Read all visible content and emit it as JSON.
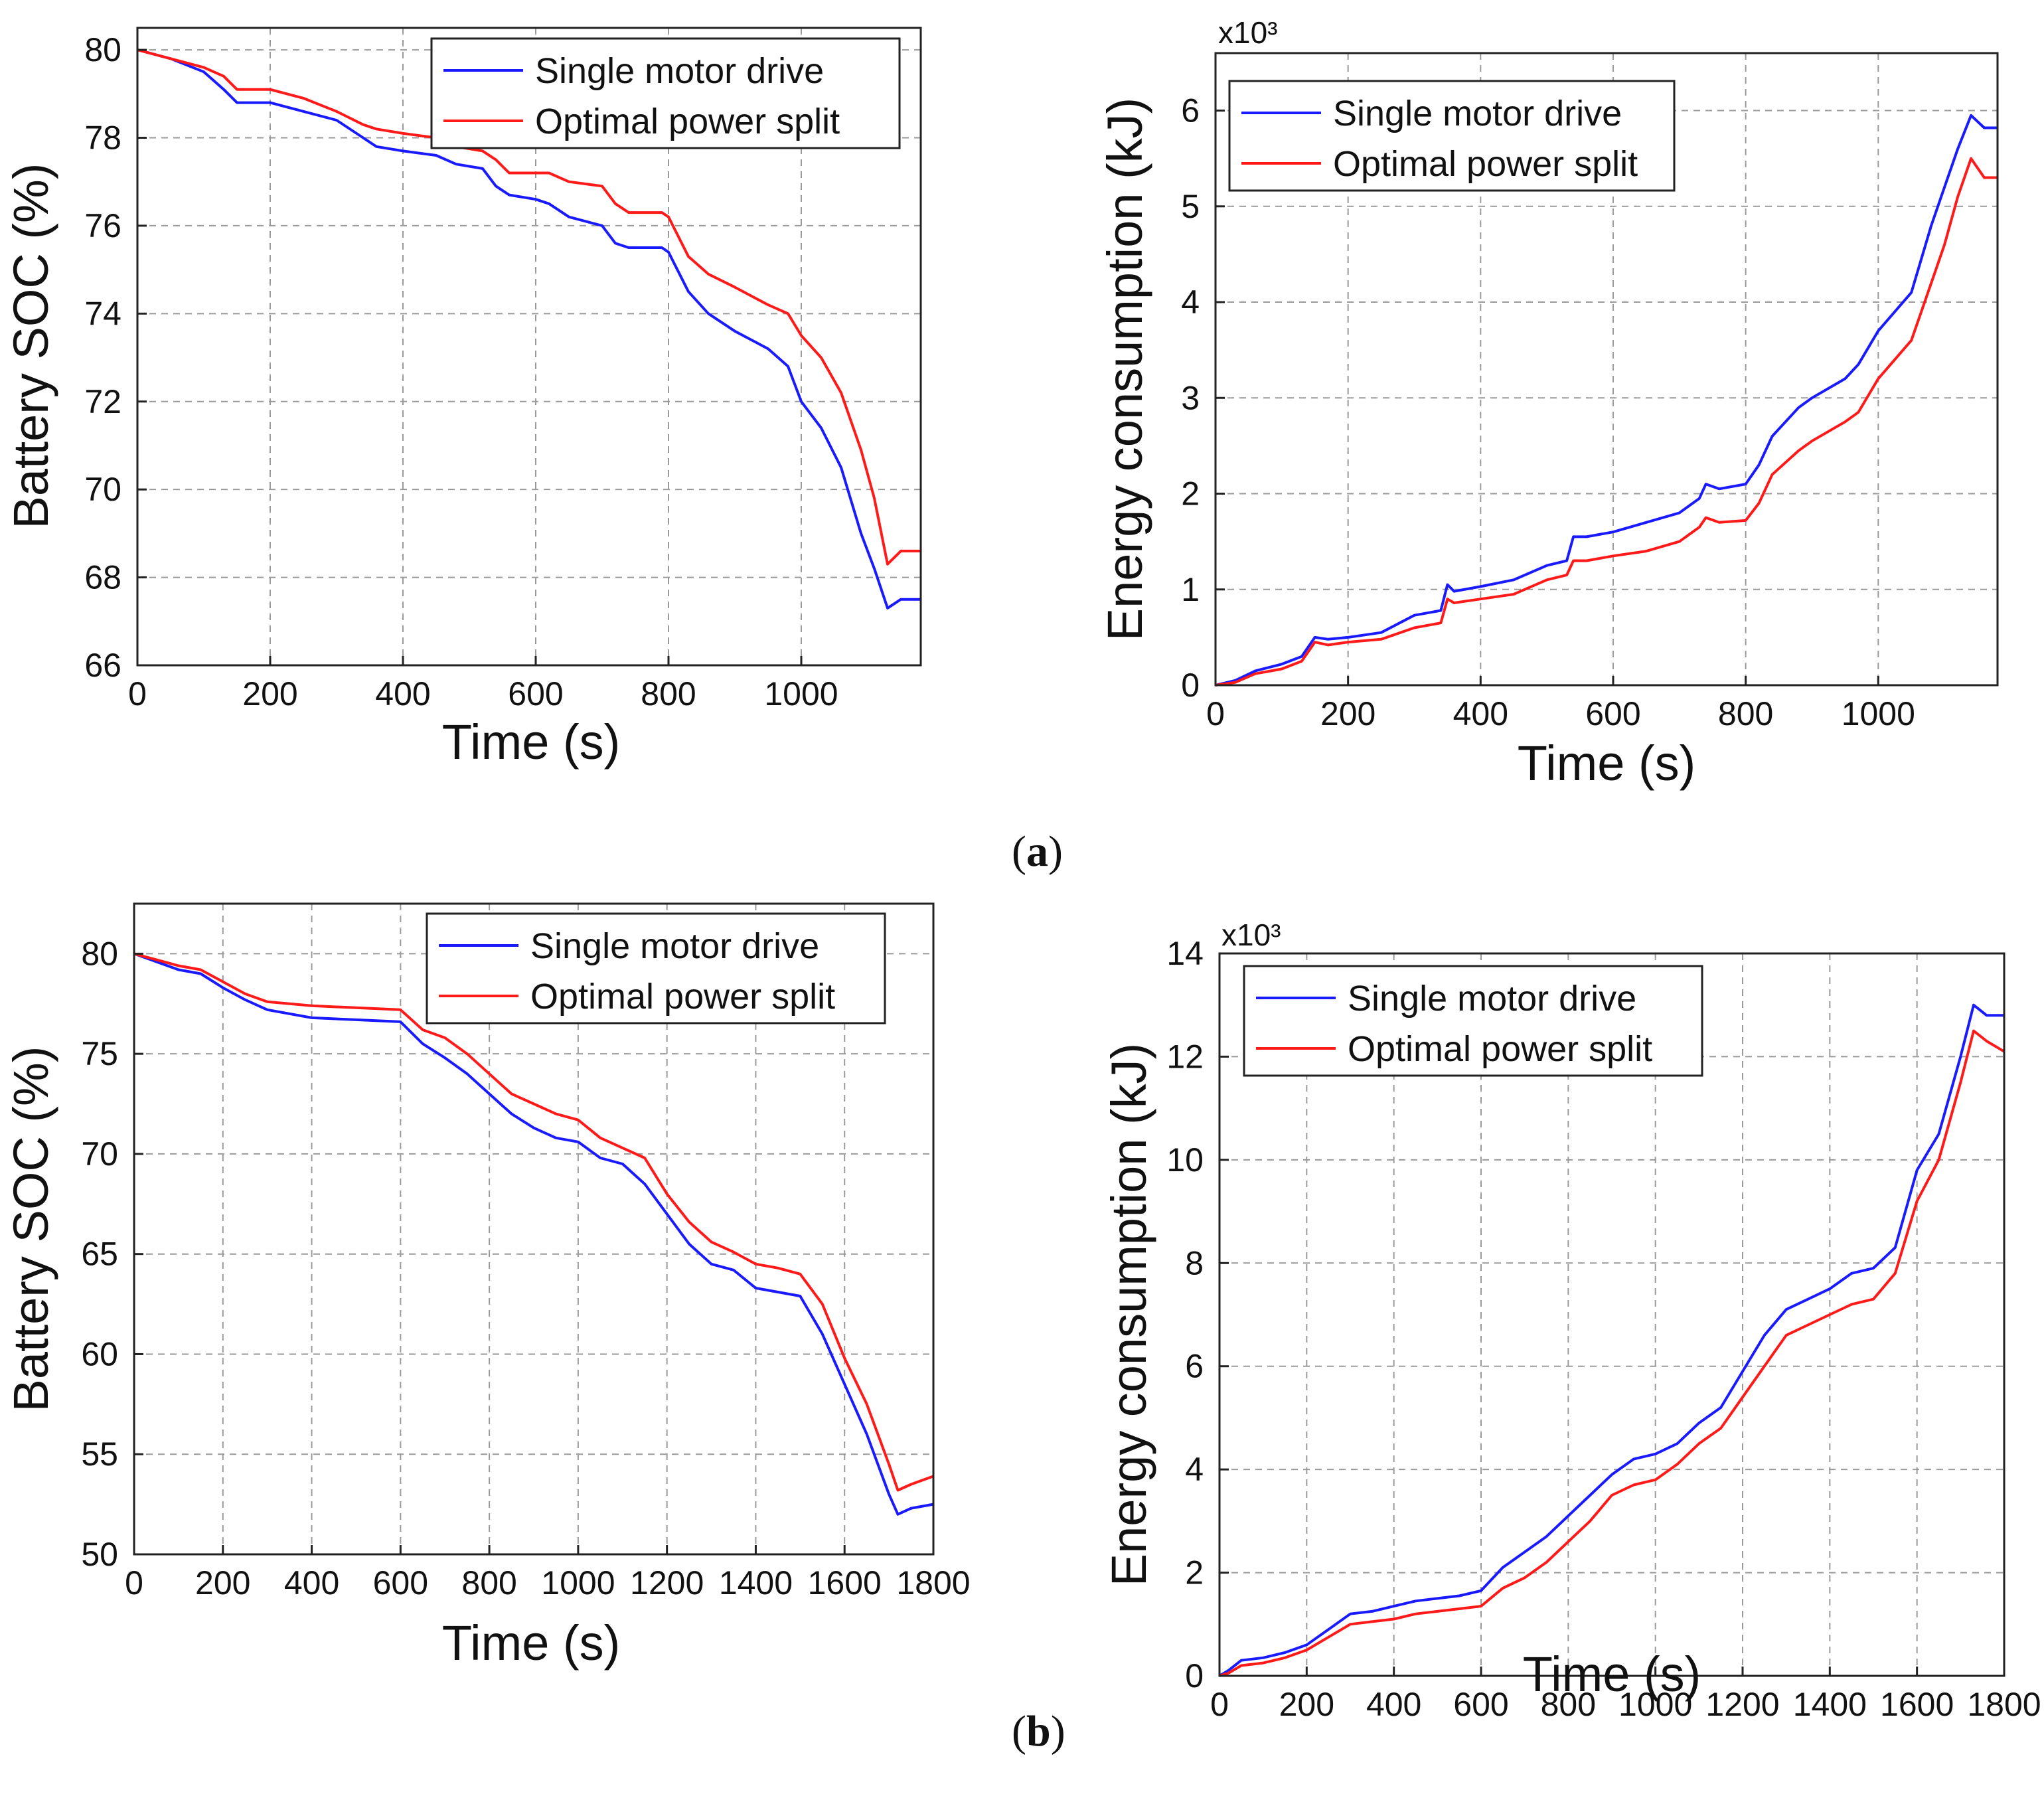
{
  "captions": {
    "a_open": "(",
    "a_letter": "a",
    "a_close": ")",
    "b_open": "(",
    "b_letter": "b",
    "b_close": ")"
  },
  "colors": {
    "single": "#1a1aff",
    "optimal": "#ff1a1a",
    "grid": "#9a9a9a"
  },
  "chart_data": [
    {
      "id": "a-soc",
      "type": "line",
      "xlabel": "Time (s)",
      "ylabel": "Battery SOC (%)",
      "multiplier": "",
      "xlim": [
        0,
        1180
      ],
      "ylim": [
        66,
        80.5
      ],
      "xticks": [
        0,
        200,
        400,
        600,
        800,
        1000
      ],
      "xtick_labels": [
        "0",
        "200",
        "400",
        "600",
        "800",
        "1000"
      ],
      "yticks": [
        66,
        68,
        70,
        72,
        74,
        76,
        78,
        80
      ],
      "ytick_labels": [
        "66",
        "68",
        "70",
        "72",
        "74",
        "76",
        "78",
        "80"
      ],
      "legend": {
        "position": "top-right",
        "entries": [
          "Single motor drive",
          "Optimal power split"
        ]
      },
      "series": [
        {
          "name": "Single motor drive",
          "color": "#1a1aff",
          "x": [
            0,
            50,
            100,
            130,
            150,
            200,
            250,
            300,
            340,
            360,
            400,
            450,
            480,
            520,
            540,
            560,
            600,
            620,
            650,
            700,
            720,
            740,
            760,
            790,
            800,
            830,
            860,
            900,
            950,
            980,
            1000,
            1030,
            1060,
            1090,
            1110,
            1130,
            1150,
            1160,
            1180
          ],
          "y": [
            80,
            79.8,
            79.5,
            79.1,
            78.8,
            78.8,
            78.6,
            78.4,
            78.0,
            77.8,
            77.7,
            77.6,
            77.4,
            77.3,
            76.9,
            76.7,
            76.6,
            76.5,
            76.2,
            76.0,
            75.6,
            75.5,
            75.5,
            75.5,
            75.4,
            74.5,
            74.0,
            73.6,
            73.2,
            72.8,
            72.0,
            71.4,
            70.5,
            69.0,
            68.2,
            67.3,
            67.5,
            67.5,
            67.5
          ]
        },
        {
          "name": "Optimal power split",
          "color": "#ff1a1a",
          "x": [
            0,
            50,
            100,
            130,
            150,
            200,
            250,
            300,
            340,
            360,
            400,
            450,
            480,
            520,
            540,
            560,
            600,
            620,
            650,
            700,
            720,
            740,
            760,
            790,
            800,
            830,
            860,
            900,
            950,
            980,
            1000,
            1030,
            1060,
            1090,
            1110,
            1130,
            1150,
            1160,
            1180
          ],
          "y": [
            80,
            79.8,
            79.6,
            79.4,
            79.1,
            79.1,
            78.9,
            78.6,
            78.3,
            78.2,
            78.1,
            78.0,
            77.8,
            77.7,
            77.5,
            77.2,
            77.2,
            77.2,
            77.0,
            76.9,
            76.5,
            76.3,
            76.3,
            76.3,
            76.2,
            75.3,
            74.9,
            74.6,
            74.2,
            74.0,
            73.5,
            73.0,
            72.2,
            70.9,
            69.8,
            68.3,
            68.6,
            68.6,
            68.6
          ]
        }
      ]
    },
    {
      "id": "a-energy",
      "type": "line",
      "xlabel": "Time (s)",
      "ylabel": "Energy consumption (kJ)",
      "multiplier": "x10³",
      "xlim": [
        0,
        1180
      ],
      "ylim": [
        0,
        6.6
      ],
      "xticks": [
        0,
        200,
        400,
        600,
        800,
        1000
      ],
      "xtick_labels": [
        "0",
        "200",
        "400",
        "600",
        "800",
        "1000"
      ],
      "yticks": [
        0,
        1,
        2,
        3,
        4,
        5,
        6
      ],
      "ytick_labels": [
        "0",
        "1",
        "2",
        "3",
        "4",
        "5",
        "6"
      ],
      "legend": {
        "position": "top-left",
        "entries": [
          "Single motor drive",
          "Optimal power split"
        ]
      },
      "series": [
        {
          "name": "Single motor drive",
          "color": "#1a1aff",
          "x": [
            0,
            30,
            60,
            100,
            130,
            150,
            170,
            200,
            250,
            300,
            340,
            350,
            360,
            400,
            450,
            500,
            530,
            540,
            560,
            600,
            650,
            700,
            730,
            740,
            760,
            800,
            820,
            840,
            880,
            900,
            950,
            970,
            1000,
            1050,
            1080,
            1100,
            1120,
            1140,
            1160,
            1180
          ],
          "y": [
            0,
            0.05,
            0.15,
            0.22,
            0.3,
            0.5,
            0.48,
            0.5,
            0.55,
            0.73,
            0.78,
            1.05,
            0.98,
            1.03,
            1.1,
            1.25,
            1.3,
            1.55,
            1.55,
            1.6,
            1.7,
            1.8,
            1.95,
            2.1,
            2.05,
            2.1,
            2.3,
            2.6,
            2.9,
            3.0,
            3.2,
            3.35,
            3.7,
            4.1,
            4.8,
            5.2,
            5.6,
            5.95,
            5.82,
            5.82
          ]
        },
        {
          "name": "Optimal power split",
          "color": "#ff1a1a",
          "x": [
            0,
            30,
            60,
            100,
            130,
            150,
            170,
            200,
            250,
            300,
            340,
            350,
            360,
            400,
            450,
            500,
            530,
            540,
            560,
            600,
            650,
            700,
            730,
            740,
            760,
            800,
            820,
            840,
            880,
            900,
            950,
            970,
            1000,
            1050,
            1080,
            1100,
            1120,
            1140,
            1160,
            1180
          ],
          "y": [
            0,
            0.03,
            0.12,
            0.17,
            0.25,
            0.45,
            0.42,
            0.45,
            0.48,
            0.6,
            0.65,
            0.9,
            0.86,
            0.9,
            0.95,
            1.1,
            1.15,
            1.3,
            1.3,
            1.35,
            1.4,
            1.5,
            1.65,
            1.75,
            1.7,
            1.72,
            1.9,
            2.2,
            2.45,
            2.55,
            2.75,
            2.85,
            3.2,
            3.6,
            4.2,
            4.6,
            5.1,
            5.5,
            5.3,
            5.3
          ]
        }
      ]
    },
    {
      "id": "b-soc",
      "type": "line",
      "xlabel": "Time (s)",
      "ylabel": "Battery SOC (%)",
      "multiplier": "",
      "xlim": [
        0,
        1800
      ],
      "ylim": [
        50,
        82.5
      ],
      "xticks": [
        0,
        200,
        400,
        600,
        800,
        1000,
        1200,
        1400,
        1600,
        1800
      ],
      "xtick_labels": [
        "0",
        "200",
        "400",
        "600",
        "800",
        "1000",
        "1200",
        "1400",
        "1600",
        "1800"
      ],
      "yticks": [
        50,
        55,
        60,
        65,
        70,
        75,
        80
      ],
      "ytick_labels": [
        "50",
        "55",
        "60",
        "65",
        "70",
        "75",
        "80"
      ],
      "legend": {
        "position": "top-right",
        "entries": [
          "Single motor drive",
          "Optimal power split"
        ]
      },
      "series": [
        {
          "name": "Single motor drive",
          "color": "#1a1aff",
          "x": [
            0,
            100,
            150,
            200,
            250,
            300,
            400,
            500,
            600,
            650,
            700,
            750,
            800,
            850,
            900,
            950,
            1000,
            1050,
            1100,
            1150,
            1200,
            1250,
            1300,
            1350,
            1400,
            1450,
            1500,
            1550,
            1600,
            1650,
            1700,
            1720,
            1750,
            1800
          ],
          "y": [
            80,
            79.2,
            79.0,
            78.3,
            77.7,
            77.2,
            76.8,
            76.7,
            76.6,
            75.5,
            74.8,
            74.0,
            73.0,
            72.0,
            71.3,
            70.8,
            70.6,
            69.8,
            69.5,
            68.5,
            67.0,
            65.5,
            64.5,
            64.2,
            63.3,
            63.1,
            62.9,
            61.0,
            58.5,
            56.0,
            53.0,
            52.0,
            52.3,
            52.5
          ]
        },
        {
          "name": "Optimal power split",
          "color": "#ff1a1a",
          "x": [
            0,
            100,
            150,
            200,
            250,
            300,
            400,
            500,
            600,
            650,
            700,
            750,
            800,
            850,
            900,
            950,
            1000,
            1050,
            1100,
            1150,
            1200,
            1250,
            1300,
            1350,
            1400,
            1450,
            1500,
            1550,
            1600,
            1650,
            1700,
            1720,
            1750,
            1800
          ],
          "y": [
            80,
            79.4,
            79.2,
            78.6,
            78.0,
            77.6,
            77.4,
            77.3,
            77.2,
            76.2,
            75.8,
            75.0,
            74.0,
            73.0,
            72.5,
            72.0,
            71.7,
            70.8,
            70.3,
            69.8,
            68.0,
            66.6,
            65.6,
            65.1,
            64.5,
            64.3,
            64.0,
            62.5,
            59.8,
            57.5,
            54.5,
            53.2,
            53.5,
            53.9
          ]
        }
      ]
    },
    {
      "id": "b-energy",
      "type": "line",
      "xlabel": "Time (s)",
      "ylabel": "Energy consumption (kJ)",
      "multiplier": "x10³",
      "xlim": [
        0,
        1800
      ],
      "ylim": [
        0,
        14
      ],
      "xticks": [
        0,
        200,
        400,
        600,
        800,
        1000,
        1200,
        1400,
        1600,
        1800
      ],
      "xtick_labels": [
        "0",
        "200",
        "400",
        "600",
        "800",
        "1000",
        "1200",
        "1400",
        "1600",
        "1800"
      ],
      "yticks": [
        0,
        2,
        4,
        6,
        8,
        10,
        12,
        14
      ],
      "ytick_labels": [
        "0",
        "2",
        "4",
        "6",
        "8",
        "10",
        "12",
        "14"
      ],
      "legend": {
        "position": "top-left",
        "entries": [
          "Single motor drive",
          "Optimal power split"
        ]
      },
      "series": [
        {
          "name": "Single motor drive",
          "color": "#1a1aff",
          "x": [
            0,
            20,
            50,
            100,
            150,
            200,
            250,
            300,
            350,
            400,
            450,
            500,
            550,
            600,
            650,
            700,
            750,
            800,
            850,
            900,
            950,
            1000,
            1050,
            1100,
            1150,
            1200,
            1250,
            1300,
            1350,
            1400,
            1450,
            1500,
            1550,
            1600,
            1650,
            1700,
            1730,
            1760,
            1800
          ],
          "y": [
            0,
            0.1,
            0.3,
            0.35,
            0.45,
            0.6,
            0.9,
            1.2,
            1.25,
            1.35,
            1.45,
            1.5,
            1.55,
            1.65,
            2.1,
            2.4,
            2.7,
            3.1,
            3.5,
            3.9,
            4.2,
            4.3,
            4.5,
            4.9,
            5.2,
            5.9,
            6.6,
            7.1,
            7.3,
            7.5,
            7.8,
            7.9,
            8.3,
            9.8,
            10.5,
            12.0,
            13.0,
            12.8,
            12.8
          ]
        },
        {
          "name": "Optimal power split",
          "color": "#ff1a1a",
          "x": [
            0,
            20,
            50,
            100,
            150,
            200,
            250,
            300,
            350,
            400,
            450,
            500,
            550,
            600,
            650,
            700,
            750,
            800,
            850,
            900,
            950,
            1000,
            1050,
            1100,
            1150,
            1200,
            1250,
            1300,
            1350,
            1400,
            1450,
            1500,
            1550,
            1600,
            1650,
            1700,
            1730,
            1760,
            1800
          ],
          "y": [
            0,
            0.05,
            0.2,
            0.25,
            0.35,
            0.5,
            0.75,
            1.0,
            1.05,
            1.1,
            1.2,
            1.25,
            1.3,
            1.35,
            1.7,
            1.9,
            2.2,
            2.6,
            3.0,
            3.5,
            3.7,
            3.8,
            4.1,
            4.5,
            4.8,
            5.4,
            6.0,
            6.6,
            6.8,
            7.0,
            7.2,
            7.3,
            7.8,
            9.2,
            10.0,
            11.5,
            12.5,
            12.3,
            12.1
          ]
        }
      ]
    }
  ]
}
